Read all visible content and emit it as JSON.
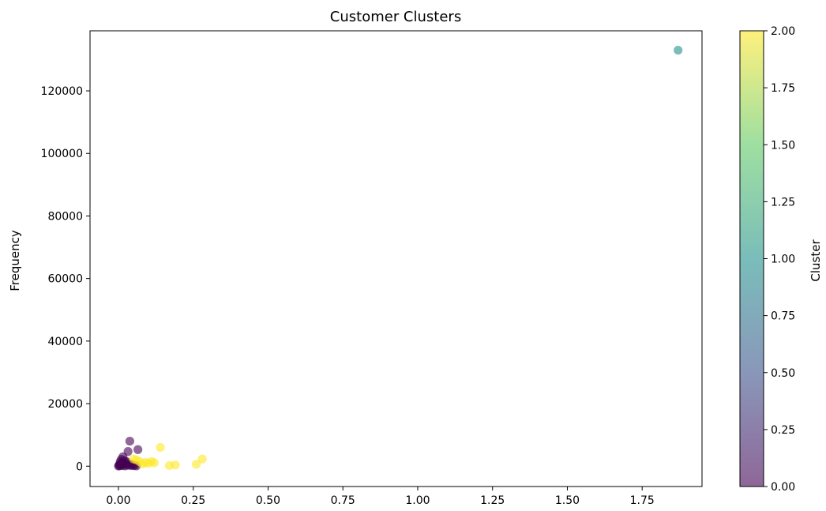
{
  "chart_data": {
    "type": "scatter",
    "title": "Customer Clusters",
    "xlabel": "",
    "ylabel": "Frequency",
    "xlim": [
      -0.095,
      1.95
    ],
    "ylim": [
      -6500,
      139200
    ],
    "xticks": [
      0.0,
      0.25,
      0.5,
      0.75,
      1.0,
      1.25,
      1.5,
      1.75
    ],
    "xtick_labels": [
      "0.00",
      "0.25",
      "0.50",
      "0.75",
      "1.00",
      "1.25",
      "1.50",
      "1.75"
    ],
    "yticks": [
      0,
      20000,
      40000,
      60000,
      80000,
      100000,
      120000
    ],
    "ytick_labels": [
      "0",
      "20000",
      "40000",
      "60000",
      "80000",
      "100000",
      "120000"
    ],
    "grid": false,
    "colormap": "viridis",
    "alpha": 0.6,
    "colorbar": {
      "label": "Cluster",
      "range": [
        0,
        2
      ],
      "ticks": [
        0,
        0.25,
        0.5,
        0.75,
        1.0,
        1.25,
        1.5,
        1.75,
        2.0
      ],
      "tick_labels": [
        "0.00",
        "0.25",
        "0.50",
        "0.75",
        "1.00",
        "1.25",
        "1.50",
        "1.75",
        "2.00"
      ],
      "colors": [
        "#440154",
        "#3b528b",
        "#21918c",
        "#5ec962",
        "#fde725"
      ]
    },
    "points": [
      {
        "x": 0.0,
        "y": 50,
        "cluster": 0
      },
      {
        "x": 0.002,
        "y": 300,
        "cluster": 0
      },
      {
        "x": 0.004,
        "y": 120,
        "cluster": 0
      },
      {
        "x": 0.005,
        "y": 800,
        "cluster": 0
      },
      {
        "x": 0.006,
        "y": 1500,
        "cluster": 0
      },
      {
        "x": 0.008,
        "y": 400,
        "cluster": 0
      },
      {
        "x": 0.01,
        "y": 2200,
        "cluster": 0
      },
      {
        "x": 0.012,
        "y": 1100,
        "cluster": 0
      },
      {
        "x": 0.014,
        "y": 200,
        "cluster": 0
      },
      {
        "x": 0.015,
        "y": 3000,
        "cluster": 0
      },
      {
        "x": 0.018,
        "y": 700,
        "cluster": 0
      },
      {
        "x": 0.02,
        "y": 1800,
        "cluster": 0
      },
      {
        "x": 0.022,
        "y": 100,
        "cluster": 0
      },
      {
        "x": 0.025,
        "y": 900,
        "cluster": 0
      },
      {
        "x": 0.028,
        "y": 1400,
        "cluster": 0
      },
      {
        "x": 0.03,
        "y": 300,
        "cluster": 0
      },
      {
        "x": 0.032,
        "y": 4700,
        "cluster": 0
      },
      {
        "x": 0.035,
        "y": 600,
        "cluster": 0
      },
      {
        "x": 0.038,
        "y": 8000,
        "cluster": 0
      },
      {
        "x": 0.04,
        "y": 200,
        "cluster": 0
      },
      {
        "x": 0.045,
        "y": 500,
        "cluster": 0
      },
      {
        "x": 0.05,
        "y": 150,
        "cluster": 0
      },
      {
        "x": 0.055,
        "y": 300,
        "cluster": 0
      },
      {
        "x": 0.06,
        "y": 100,
        "cluster": 0
      },
      {
        "x": 0.065,
        "y": 5300,
        "cluster": 0
      },
      {
        "x": 0.05,
        "y": 2300,
        "cluster": 2
      },
      {
        "x": 0.06,
        "y": 2000,
        "cluster": 2
      },
      {
        "x": 0.07,
        "y": 1500,
        "cluster": 2
      },
      {
        "x": 0.08,
        "y": 700,
        "cluster": 2
      },
      {
        "x": 0.09,
        "y": 1200,
        "cluster": 2
      },
      {
        "x": 0.1,
        "y": 900,
        "cluster": 2
      },
      {
        "x": 0.11,
        "y": 1500,
        "cluster": 2
      },
      {
        "x": 0.12,
        "y": 1100,
        "cluster": 2
      },
      {
        "x": 0.14,
        "y": 6000,
        "cluster": 2
      },
      {
        "x": 0.17,
        "y": 200,
        "cluster": 2
      },
      {
        "x": 0.19,
        "y": 400,
        "cluster": 2
      },
      {
        "x": 0.26,
        "y": 600,
        "cluster": 2
      },
      {
        "x": 0.28,
        "y": 2300,
        "cluster": 2
      },
      {
        "x": 1.87,
        "y": 133000,
        "cluster": 1
      }
    ]
  }
}
